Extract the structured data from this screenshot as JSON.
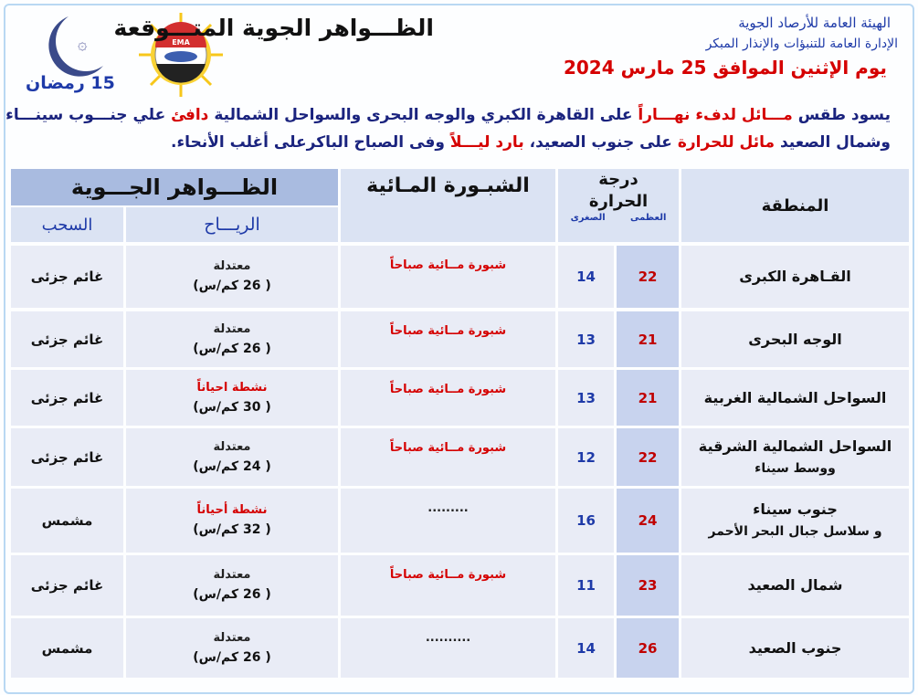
{
  "header": {
    "org_name": "الهيئة العامة للأرصاد الجوية",
    "org_department": "الإدارة العامة للتنبؤات والإنذار المبكر",
    "title": "الظـــواهر الجوية المتـــوقعة",
    "date": "يوم الإثنين الموافق 25 مارس 2024",
    "hijri_date": "15 رمضان",
    "logo_text": "EMA"
  },
  "summary": {
    "lines": [
      [
        {
          "text": "يسود طقس ",
          "color": "#1a237e"
        },
        {
          "text": "مـــائل لدفء نهـــاراً",
          "color": "#d50000"
        },
        {
          "text": " على القاهرة الكبري والوجه البحرى والسواحل الشمالية ",
          "color": "#1a237e"
        },
        {
          "text": "دافئ",
          "color": "#d50000"
        },
        {
          "text": " علي جنـــوب سينـــاء",
          "color": "#1a237e"
        }
      ],
      [
        {
          "text": "وشمال الصعيد ",
          "color": "#1a237e"
        },
        {
          "text": "مائل للحرارة",
          "color": "#d50000"
        },
        {
          "text": " على جنوب الصعيد، ",
          "color": "#1a237e"
        },
        {
          "text": "بارد ليـــلاً",
          "color": "#d50000"
        },
        {
          "text": " وفى الصباح الباكرعلى أغلب الأنحاء.",
          "color": "#1a237e"
        }
      ]
    ]
  },
  "table": {
    "headers": {
      "region": "المنطقة",
      "temperature": "درجة الحرارة",
      "max": "العظمى",
      "min": "الصغرى",
      "fog": "الشبـورة المـائية",
      "phenomena": "الظـــواهر الجـــوية",
      "wind": "الريـــاح",
      "clouds": "السحب"
    },
    "rows": [
      {
        "region": [
          "القـاهرة الكبرى"
        ],
        "max": 22,
        "min": 14,
        "fog": "شبورة مــائية صباحاً",
        "fog_color": "#d50000",
        "wind": "معتدلة",
        "wind_speed": "( 26 كم/س)",
        "wind_color": "#222222",
        "clouds": "غائم جزئى"
      },
      {
        "region": [
          "الوجه البحرى"
        ],
        "max": 21,
        "min": 13,
        "fog": "شبورة مــائية صباحاً",
        "fog_color": "#d50000",
        "wind": "معتدلة",
        "wind_speed": "( 26 كم/س)",
        "wind_color": "#222222",
        "clouds": "غائم جزئى"
      },
      {
        "region": [
          "السواحل الشمالية الغربية"
        ],
        "max": 21,
        "min": 13,
        "fog": "شبورة مــائية صباحاً",
        "fog_color": "#d50000",
        "wind": "نشطة احياناً",
        "wind_speed": "( 30 كم/س)",
        "wind_color": "#d50000",
        "clouds": "غائم جزئى"
      },
      {
        "region": [
          "السواحل الشمالية الشرقية",
          "ووسط سيناء"
        ],
        "max": 22,
        "min": 12,
        "fog": "شبورة مــائية صباحاً",
        "fog_color": "#d50000",
        "wind": "معتدلة",
        "wind_speed": "( 24 كم/س)",
        "wind_color": "#222222",
        "clouds": "غائم جزئى"
      },
      {
        "region": [
          "جنوب سيناء",
          "و سلاسل جبال البحر الأحمر"
        ],
        "max": 24,
        "min": 16,
        "fog": ".........",
        "fog_color": "#222222",
        "wind": "نشطة أحياناً",
        "wind_speed": "( 32 كم/س)",
        "wind_color": "#d50000",
        "clouds": "مشمس"
      },
      {
        "region": [
          "شمال الصعيد"
        ],
        "max": 23,
        "min": 11,
        "fog": "شبورة مــائية صباحاً",
        "fog_color": "#d50000",
        "wind": "معتدلة",
        "wind_speed": "( 26 كم/س)",
        "wind_color": "#222222",
        "clouds": "غائم جزئى"
      },
      {
        "region": [
          "جنوب الصعيد"
        ],
        "max": 26,
        "min": 14,
        "fog": "..........",
        "fog_color": "#222222",
        "wind": "معتدلة",
        "wind_speed": "( 26 كم/س)",
        "wind_color": "#222222",
        "clouds": "مشمس"
      }
    ]
  }
}
